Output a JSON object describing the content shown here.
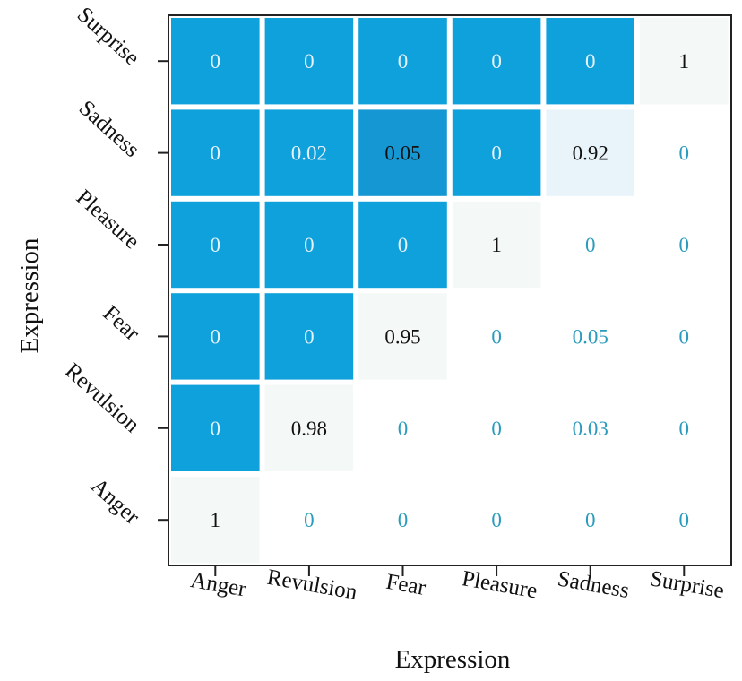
{
  "chart_data": {
    "type": "heatmap",
    "xlabel": "Expression",
    "ylabel": "Expression",
    "x_categories": [
      "Anger",
      "Revulsion",
      "Fear",
      "Pleasure",
      "Sadness",
      "Surprise"
    ],
    "y_categories": [
      "Anger",
      "Revulsion",
      "Fear",
      "Pleasure",
      "Sadness",
      "Surprise"
    ],
    "rows": [
      {
        "y": "Surprise",
        "values": [
          "0",
          "0",
          "0",
          "0",
          "0",
          "1"
        ]
      },
      {
        "y": "Sadness",
        "values": [
          "0",
          "0.02",
          "0.05",
          "0",
          "0.92",
          "0"
        ]
      },
      {
        "y": "Pleasure",
        "values": [
          "0",
          "0",
          "0",
          "1",
          "0",
          "0"
        ]
      },
      {
        "y": "Fear",
        "values": [
          "0",
          "0",
          "0.95",
          "0",
          "0.05",
          "0"
        ]
      },
      {
        "y": "Revulsion",
        "values": [
          "0",
          "0.98",
          "0",
          "0",
          "0.03",
          "0"
        ]
      },
      {
        "y": "Anger",
        "values": [
          "1",
          "0",
          "0",
          "0",
          "0",
          "0"
        ]
      }
    ],
    "value_range": [
      0,
      1
    ],
    "grid": false,
    "legend": "none",
    "colors": {
      "filled_cell": "#0ea1dc",
      "filled_cell_medium": "#1597d4",
      "diagonal_cell": "#f4f8f7",
      "diagonal_cell_light": "#e8f4f9",
      "text_on_filled": "#e7f2f8",
      "text_dark": "#111111",
      "text_empty": "#2b9bbd",
      "axis": "#222222"
    }
  }
}
